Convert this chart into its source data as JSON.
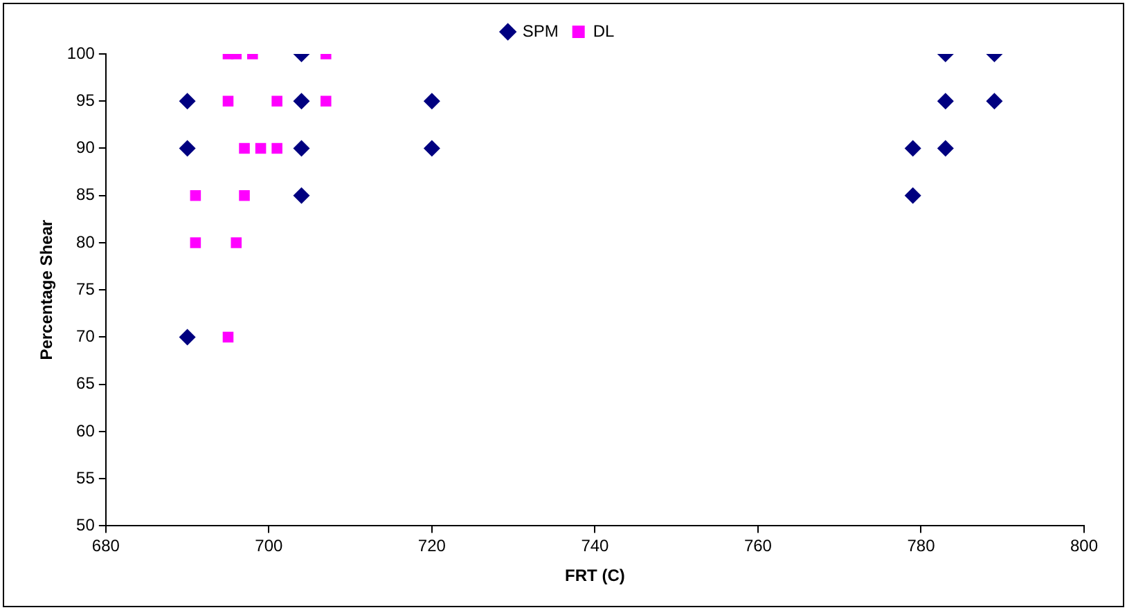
{
  "chart_data": {
    "type": "scatter",
    "xlabel": "FRT (C)",
    "ylabel": "Percentage Shear",
    "xlim": [
      680,
      800
    ],
    "xticks": [
      680,
      700,
      720,
      740,
      760,
      780,
      800
    ],
    "ylim": [
      50,
      100
    ],
    "yticks": [
      50,
      55,
      60,
      65,
      70,
      75,
      80,
      85,
      90,
      95,
      100
    ],
    "grid": false,
    "legend": "top",
    "series": [
      {
        "name": "SPM",
        "color": "#000080",
        "marker": "diamond",
        "x": [
          690,
          690,
          690,
          704,
          704,
          704,
          704,
          720,
          720,
          779,
          779,
          783,
          783,
          783,
          789,
          789
        ],
        "values": [
          95,
          90,
          70,
          100,
          95,
          90,
          85,
          95,
          90,
          90,
          85,
          100,
          95,
          90,
          100,
          95
        ]
      },
      {
        "name": "DL",
        "color": "#ff00ff",
        "marker": "square",
        "x": [
          695,
          696,
          698,
          707,
          695,
          701,
          707,
          697,
          699,
          701,
          691,
          697,
          691,
          696,
          695
        ],
        "values": [
          100,
          100,
          100,
          100,
          95,
          95,
          95,
          90,
          90,
          90,
          85,
          85,
          80,
          80,
          70
        ]
      }
    ]
  }
}
